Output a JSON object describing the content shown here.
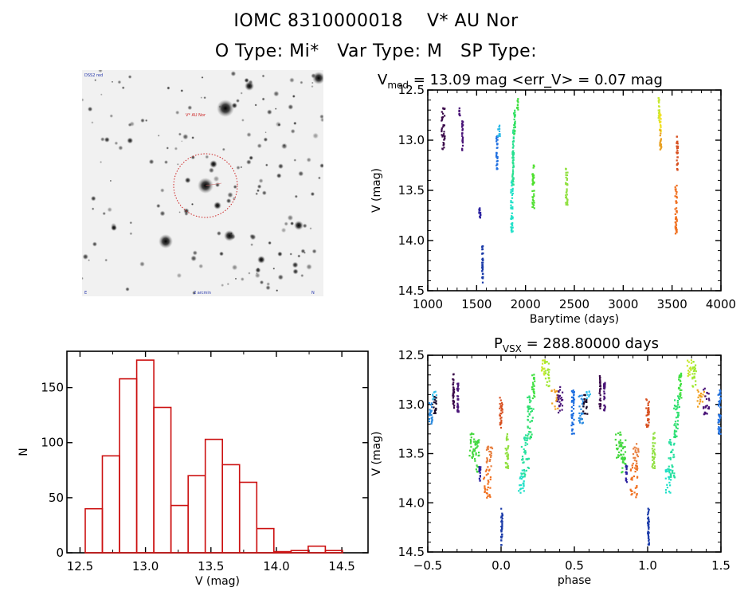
{
  "header": {
    "line1": "IOMC 8310000018    V* AU Nor",
    "line2": "O Type: Mi*   Var Type: M   SP Type:"
  },
  "finder_chart": {
    "top_left_label": "DSS2 red",
    "target_label": "V* AU Nor",
    "bottom_left_label": "E",
    "bottom_center_label": "2 arcmin",
    "bottom_right_label": "N",
    "circle_color": "#cc2222"
  },
  "chart_data": [
    {
      "id": "light_curve",
      "type": "scatter",
      "title_main": "V",
      "title_sub": "med",
      "title_rest": " = 13.09 mag <err_V> = 0.07 mag",
      "xlabel": "Barytime (days)",
      "ylabel": "V (mag)",
      "xlim": [
        1000,
        4000
      ],
      "ylim": [
        14.5,
        12.5
      ],
      "y_inverted": true,
      "xticks": [
        1000,
        1500,
        2000,
        2500,
        3000,
        3500,
        4000
      ],
      "xtick_labels": [
        "1000",
        "1500",
        "2000",
        "2500",
        "3000",
        "3500",
        "4000"
      ],
      "yticks": [
        12.5,
        13.0,
        13.5,
        14.0,
        14.5
      ],
      "ytick_labels": [
        "12.5",
        "13.0",
        "13.5",
        "14.0",
        "14.5"
      ],
      "clusters": [
        {
          "x": 1140,
          "x2": 1175,
          "vmin": 12.68,
          "vmax": 13.1,
          "color": "#3a0a4a"
        },
        {
          "x": 1320,
          "x2": 1330,
          "vmin": 12.68,
          "vmax": 12.76,
          "color": "#4a1478"
        },
        {
          "x": 1350,
          "x2": 1360,
          "vmin": 12.8,
          "vmax": 13.11,
          "color": "#4a1478"
        },
        {
          "x": 1525,
          "x2": 1540,
          "vmin": 13.63,
          "vmax": 13.8,
          "color": "#2a20a0"
        },
        {
          "x": 1555,
          "x2": 1565,
          "vmin": 14.05,
          "vmax": 14.43,
          "color": "#1a3aa8"
        },
        {
          "x": 1700,
          "x2": 1715,
          "vmin": 12.95,
          "vmax": 13.3,
          "color": "#1e6fe0"
        },
        {
          "x": 1715,
          "x2": 1740,
          "vmin": 12.84,
          "vmax": 12.98,
          "color": "#28b8e8"
        },
        {
          "x": 1850,
          "x2": 1870,
          "vmin": 13.4,
          "vmax": 13.92,
          "color": "#20e0c8"
        },
        {
          "x": 1865,
          "x2": 1880,
          "vmin": 12.9,
          "vmax": 13.45,
          "color": "#28e090"
        },
        {
          "x": 1880,
          "x2": 1895,
          "vmin": 12.7,
          "vmax": 12.95,
          "color": "#30e060"
        },
        {
          "x": 1910,
          "x2": 1925,
          "vmin": 12.57,
          "vmax": 12.7,
          "color": "#40e040"
        },
        {
          "x": 2070,
          "x2": 2090,
          "vmin": 13.25,
          "vmax": 13.68,
          "color": "#50e030"
        },
        {
          "x": 2410,
          "x2": 2430,
          "vmin": 13.28,
          "vmax": 13.65,
          "color": "#90e040"
        },
        {
          "x": 3360,
          "x2": 3375,
          "vmin": 12.55,
          "vmax": 12.82,
          "color": "#c8e830"
        },
        {
          "x": 3370,
          "x2": 3385,
          "vmin": 12.72,
          "vmax": 12.92,
          "color": "#f0e020"
        },
        {
          "x": 3375,
          "x2": 3390,
          "vmin": 12.9,
          "vmax": 13.1,
          "color": "#e8a020"
        },
        {
          "x": 3545,
          "x2": 3560,
          "vmin": 12.95,
          "vmax": 13.3,
          "color": "#d85020"
        },
        {
          "x": 3530,
          "x2": 3550,
          "vmin": 13.45,
          "vmax": 13.95,
          "color": "#f07020"
        }
      ]
    },
    {
      "id": "histogram",
      "type": "bar",
      "title": "",
      "xlabel": "V (mag)",
      "ylabel": "N",
      "xlim": [
        12.4,
        14.7
      ],
      "ylim": [
        0,
        183
      ],
      "xticks": [
        12.5,
        13.0,
        13.5,
        14.0,
        14.5
      ],
      "xtick_labels": [
        "12.5",
        "13.0",
        "13.5",
        "14.0",
        "14.5"
      ],
      "yticks": [
        0,
        50,
        100,
        150
      ],
      "ytick_labels": [
        "0",
        "50",
        "100",
        "150"
      ],
      "bin_start": 12.54,
      "bin_width": 0.131,
      "values": [
        40,
        88,
        158,
        175,
        132,
        43,
        70,
        103,
        80,
        64,
        22,
        1,
        2,
        6,
        2
      ],
      "bar_color": "#cc1111"
    },
    {
      "id": "phased_curve",
      "type": "scatter",
      "title_main": "P",
      "title_sub": "VSX",
      "title_rest": " = 288.80000 days",
      "xlabel": "phase",
      "ylabel": "V (mag)",
      "xlim": [
        -0.5,
        1.5
      ],
      "ylim": [
        14.5,
        12.5
      ],
      "y_inverted": true,
      "xticks": [
        -0.5,
        0.0,
        0.5,
        1.0,
        1.5
      ],
      "xtick_labels": [
        "−0.5",
        "0.0",
        "0.5",
        "1.0",
        "1.5"
      ],
      "yticks": [
        12.5,
        13.0,
        13.5,
        14.0,
        14.5
      ],
      "ytick_labels": [
        "12.5",
        "13.0",
        "13.5",
        "14.0",
        "14.5"
      ],
      "period_days": 288.8,
      "clusters": [
        {
          "x": -0.49,
          "x2": -0.47,
          "vmin": 12.95,
          "vmax": 13.2,
          "color": "#2a8ae0"
        },
        {
          "x": -0.47,
          "x2": -0.44,
          "vmin": 12.86,
          "vmax": 12.98,
          "color": "#38c0ec"
        },
        {
          "x": -0.46,
          "x2": -0.44,
          "vmin": 12.92,
          "vmax": 13.1,
          "color": "#1a0a2a"
        },
        {
          "x": -0.33,
          "x2": -0.32,
          "vmin": 12.68,
          "vmax": 13.05,
          "color": "#3a0a4a"
        },
        {
          "x": -0.3,
          "x2": -0.29,
          "vmin": 12.78,
          "vmax": 13.1,
          "color": "#4a1478"
        },
        {
          "x": -0.22,
          "x2": -0.18,
          "vmin": 13.28,
          "vmax": 13.55,
          "color": "#48d840"
        },
        {
          "x": -0.18,
          "x2": -0.15,
          "vmin": 13.35,
          "vmax": 13.7,
          "color": "#40d840"
        },
        {
          "x": -0.15,
          "x2": -0.14,
          "vmin": 13.62,
          "vmax": 13.8,
          "color": "#2a20a0"
        },
        {
          "x": -0.12,
          "x2": -0.07,
          "vmin": 13.62,
          "vmax": 13.95,
          "color": "#f07020"
        },
        {
          "x": -0.1,
          "x2": -0.06,
          "vmin": 13.4,
          "vmax": 13.65,
          "color": "#e88040"
        },
        {
          "x": -0.01,
          "x2": 0.01,
          "vmin": 12.93,
          "vmax": 13.25,
          "color": "#d85020"
        },
        {
          "x": 0.0,
          "x2": 0.01,
          "vmin": 14.05,
          "vmax": 14.43,
          "color": "#1a3aa8"
        },
        {
          "x": 0.03,
          "x2": 0.05,
          "vmin": 13.28,
          "vmax": 13.65,
          "color": "#90e040"
        },
        {
          "x": 0.12,
          "x2": 0.16,
          "vmin": 13.65,
          "vmax": 13.9,
          "color": "#20e0c8"
        },
        {
          "x": 0.14,
          "x2": 0.19,
          "vmin": 13.3,
          "vmax": 13.75,
          "color": "#28e0a0"
        },
        {
          "x": 0.18,
          "x2": 0.22,
          "vmin": 12.9,
          "vmax": 13.35,
          "color": "#30e070"
        },
        {
          "x": 0.21,
          "x2": 0.23,
          "vmin": 12.68,
          "vmax": 12.95,
          "color": "#40e040"
        },
        {
          "x": 0.27,
          "x2": 0.3,
          "vmin": 12.55,
          "vmax": 12.72,
          "color": "#c8e830"
        },
        {
          "x": 0.3,
          "x2": 0.33,
          "vmin": 12.56,
          "vmax": 12.82,
          "color": "#a0e830"
        },
        {
          "x": 0.34,
          "x2": 0.39,
          "vmin": 12.85,
          "vmax": 13.05,
          "color": "#f0a020"
        },
        {
          "x": 0.38,
          "x2": 0.42,
          "vmin": 12.82,
          "vmax": 13.1,
          "color": "#4a1478"
        },
        {
          "x": 0.48,
          "x2": 0.5,
          "vmin": 12.85,
          "vmax": 13.3,
          "color": "#1e6fe0"
        },
        {
          "x": 0.53,
          "x2": 0.56,
          "vmin": 12.9,
          "vmax": 13.2,
          "color": "#2a8ae0"
        },
        {
          "x": 0.56,
          "x2": 0.59,
          "vmin": 12.9,
          "vmax": 13.1,
          "color": "#1a0a2a"
        },
        {
          "x": 0.58,
          "x2": 0.61,
          "vmin": 12.86,
          "vmax": 12.96,
          "color": "#38c0ec"
        },
        {
          "x": 0.67,
          "x2": 0.68,
          "vmin": 12.7,
          "vmax": 13.05,
          "color": "#3a0a4a"
        },
        {
          "x": 0.7,
          "x2": 0.71,
          "vmin": 12.78,
          "vmax": 13.1,
          "color": "#4a1478"
        },
        {
          "x": 0.78,
          "x2": 0.82,
          "vmin": 13.28,
          "vmax": 13.55,
          "color": "#48d840"
        },
        {
          "x": 0.82,
          "x2": 0.85,
          "vmin": 13.35,
          "vmax": 13.7,
          "color": "#40d840"
        },
        {
          "x": 0.85,
          "x2": 0.86,
          "vmin": 13.62,
          "vmax": 13.8,
          "color": "#2a20a0"
        },
        {
          "x": 0.88,
          "x2": 0.93,
          "vmin": 13.62,
          "vmax": 13.95,
          "color": "#f07020"
        },
        {
          "x": 0.9,
          "x2": 0.94,
          "vmin": 13.4,
          "vmax": 13.65,
          "color": "#e88040"
        },
        {
          "x": 0.99,
          "x2": 1.01,
          "vmin": 12.93,
          "vmax": 13.25,
          "color": "#d85020"
        },
        {
          "x": 1.0,
          "x2": 1.01,
          "vmin": 14.05,
          "vmax": 14.43,
          "color": "#1a3aa8"
        },
        {
          "x": 1.03,
          "x2": 1.05,
          "vmin": 13.28,
          "vmax": 13.65,
          "color": "#90e040"
        },
        {
          "x": 1.12,
          "x2": 1.16,
          "vmin": 13.65,
          "vmax": 13.9,
          "color": "#20e0c8"
        },
        {
          "x": 1.14,
          "x2": 1.19,
          "vmin": 13.3,
          "vmax": 13.75,
          "color": "#28e0a0"
        },
        {
          "x": 1.18,
          "x2": 1.22,
          "vmin": 12.9,
          "vmax": 13.35,
          "color": "#30e070"
        },
        {
          "x": 1.21,
          "x2": 1.23,
          "vmin": 12.68,
          "vmax": 12.95,
          "color": "#40e040"
        },
        {
          "x": 1.27,
          "x2": 1.3,
          "vmin": 12.55,
          "vmax": 12.72,
          "color": "#c8e830"
        },
        {
          "x": 1.3,
          "x2": 1.33,
          "vmin": 12.56,
          "vmax": 12.82,
          "color": "#a0e830"
        },
        {
          "x": 1.34,
          "x2": 1.39,
          "vmin": 12.85,
          "vmax": 13.05,
          "color": "#f0a020"
        },
        {
          "x": 1.38,
          "x2": 1.42,
          "vmin": 12.82,
          "vmax": 13.1,
          "color": "#4a1478"
        },
        {
          "x": 1.48,
          "x2": 1.5,
          "vmin": 12.85,
          "vmax": 13.3,
          "color": "#1e6fe0"
        }
      ]
    }
  ]
}
